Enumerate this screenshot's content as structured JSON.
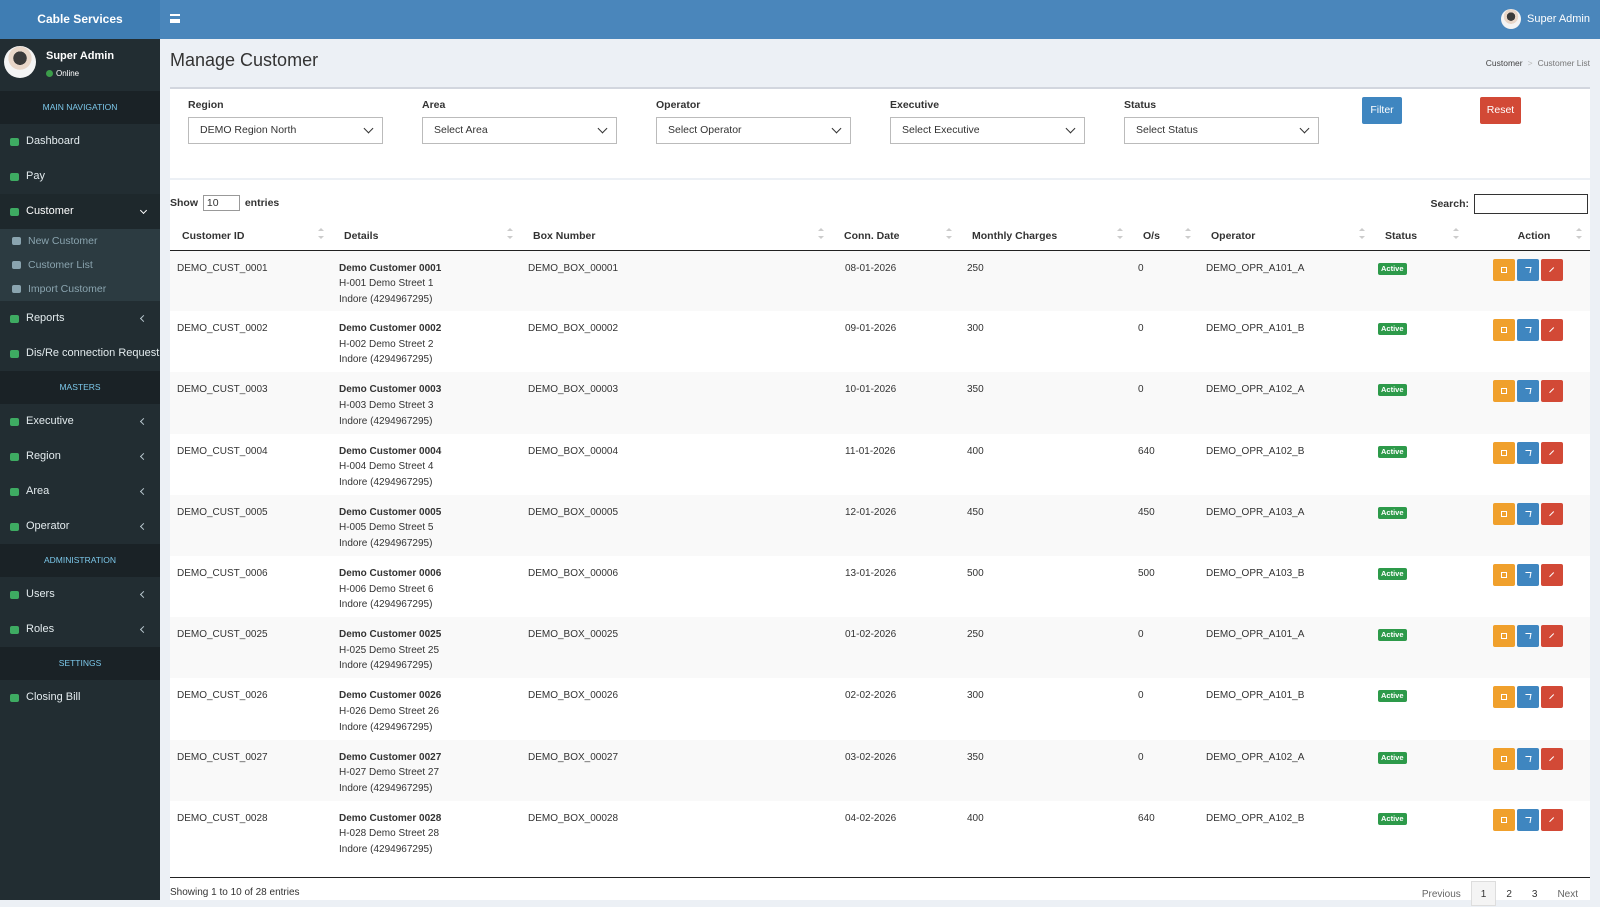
{
  "header": {
    "brand": "Cable Services",
    "user": "Super Admin"
  },
  "sidebar": {
    "user": {
      "name": "Super Admin",
      "status": "Online"
    },
    "menu": [
      {
        "header": "MAIN NAVIGATION"
      },
      {
        "item": "Dashboard"
      },
      {
        "item": "Pay"
      },
      {
        "item": "Customer",
        "children": [
          "New Customer",
          "Customer List",
          "Import Customer"
        ]
      },
      {
        "item": "Reports",
        "expandable": true
      },
      {
        "item": "Dis/Re connection Request"
      },
      {
        "header": "MASTERS"
      },
      {
        "item": "Executive",
        "expandable": true
      },
      {
        "item": "Region",
        "expandable": true
      },
      {
        "item": "Area",
        "expandable": true
      },
      {
        "item": "Operator",
        "expandable": true
      },
      {
        "header": "ADMINISTRATION"
      },
      {
        "item": "Users",
        "expandable": true
      },
      {
        "item": "Roles",
        "expandable": true
      },
      {
        "header": "SETTINGS"
      },
      {
        "item": "Closing Bill"
      }
    ]
  },
  "page": {
    "title": "Manage Customer",
    "breadcrumb": [
      "Customer",
      "Customer List"
    ]
  },
  "filters": {
    "fields": [
      {
        "label": "Region",
        "value": "DEMO Region North"
      },
      {
        "label": "Area",
        "value": "Select Area"
      },
      {
        "label": "Operator",
        "value": "Select Operator"
      },
      {
        "label": "Executive",
        "value": "Select Executive"
      },
      {
        "label": "Status",
        "value": "Select Status"
      }
    ],
    "filter_button": "Filter",
    "reset_button": "Reset"
  },
  "table": {
    "show": "Show",
    "page_size": 10,
    "entries": "entries",
    "search": "Search:",
    "columns": [
      "Customer ID",
      "Details",
      "Box Number",
      "Conn. Date",
      "Monthly Charges",
      "O/s",
      "Operator",
      "Status",
      "Action"
    ],
    "rows": [
      {
        "id": "DEMO_CUST_0001",
        "name": "Demo Customer 0001",
        "address": "H-001 Demo Street 1",
        "city": "Indore (4294967295)",
        "box": "DEMO_BOX_00001",
        "date": "08-01-2026",
        "charges": 250,
        "os": 0,
        "operator": "DEMO_OPR_A101_A",
        "status": "Active"
      },
      {
        "id": "DEMO_CUST_0002",
        "name": "Demo Customer 0002",
        "address": "H-002 Demo Street 2",
        "city": "Indore (4294967295)",
        "box": "DEMO_BOX_00002",
        "date": "09-01-2026",
        "charges": 300,
        "os": 0,
        "operator": "DEMO_OPR_A101_B",
        "status": "Active"
      },
      {
        "id": "DEMO_CUST_0003",
        "name": "Demo Customer 0003",
        "address": "H-003 Demo Street 3",
        "city": "Indore (4294967295)",
        "box": "DEMO_BOX_00003",
        "date": "10-01-2026",
        "charges": 350,
        "os": 0,
        "operator": "DEMO_OPR_A102_A",
        "status": "Active"
      },
      {
        "id": "DEMO_CUST_0004",
        "name": "Demo Customer 0004",
        "address": "H-004 Demo Street 4",
        "city": "Indore (4294967295)",
        "box": "DEMO_BOX_00004",
        "date": "11-01-2026",
        "charges": 400,
        "os": 640,
        "operator": "DEMO_OPR_A102_B",
        "status": "Active"
      },
      {
        "id": "DEMO_CUST_0005",
        "name": "Demo Customer 0005",
        "address": "H-005 Demo Street 5",
        "city": "Indore (4294967295)",
        "box": "DEMO_BOX_00005",
        "date": "12-01-2026",
        "charges": 450,
        "os": 450,
        "operator": "DEMO_OPR_A103_A",
        "status": "Active"
      },
      {
        "id": "DEMO_CUST_0006",
        "name": "Demo Customer 0006",
        "address": "H-006 Demo Street 6",
        "city": "Indore (4294967295)",
        "box": "DEMO_BOX_00006",
        "date": "13-01-2026",
        "charges": 500,
        "os": 500,
        "operator": "DEMO_OPR_A103_B",
        "status": "Active"
      },
      {
        "id": "DEMO_CUST_0025",
        "name": "Demo Customer 0025",
        "address": "H-025 Demo Street 25",
        "city": "Indore (4294967295)",
        "box": "DEMO_BOX_00025",
        "date": "01-02-2026",
        "charges": 250,
        "os": 0,
        "operator": "DEMO_OPR_A101_A",
        "status": "Active"
      },
      {
        "id": "DEMO_CUST_0026",
        "name": "Demo Customer 0026",
        "address": "H-026 Demo Street 26",
        "city": "Indore (4294967295)",
        "box": "DEMO_BOX_00026",
        "date": "02-02-2026",
        "charges": 300,
        "os": 0,
        "operator": "DEMO_OPR_A101_B",
        "status": "Active"
      },
      {
        "id": "DEMO_CUST_0027",
        "name": "Demo Customer 0027",
        "address": "H-027 Demo Street 27",
        "city": "Indore (4294967295)",
        "box": "DEMO_BOX_00027",
        "date": "03-02-2026",
        "charges": 350,
        "os": 0,
        "operator": "DEMO_OPR_A102_A",
        "status": "Active"
      },
      {
        "id": "DEMO_CUST_0028",
        "name": "Demo Customer 0028",
        "address": "H-028 Demo Street 28",
        "city": "Indore (4294967295)",
        "box": "DEMO_BOX_00028",
        "date": "04-02-2026",
        "charges": 400,
        "os": 640,
        "operator": "DEMO_OPR_A102_B",
        "status": "Active"
      }
    ],
    "info": "Showing 1 to 10 of 28 entries",
    "pagination": [
      "Previous",
      "1",
      "2",
      "3",
      "Next"
    ]
  }
}
